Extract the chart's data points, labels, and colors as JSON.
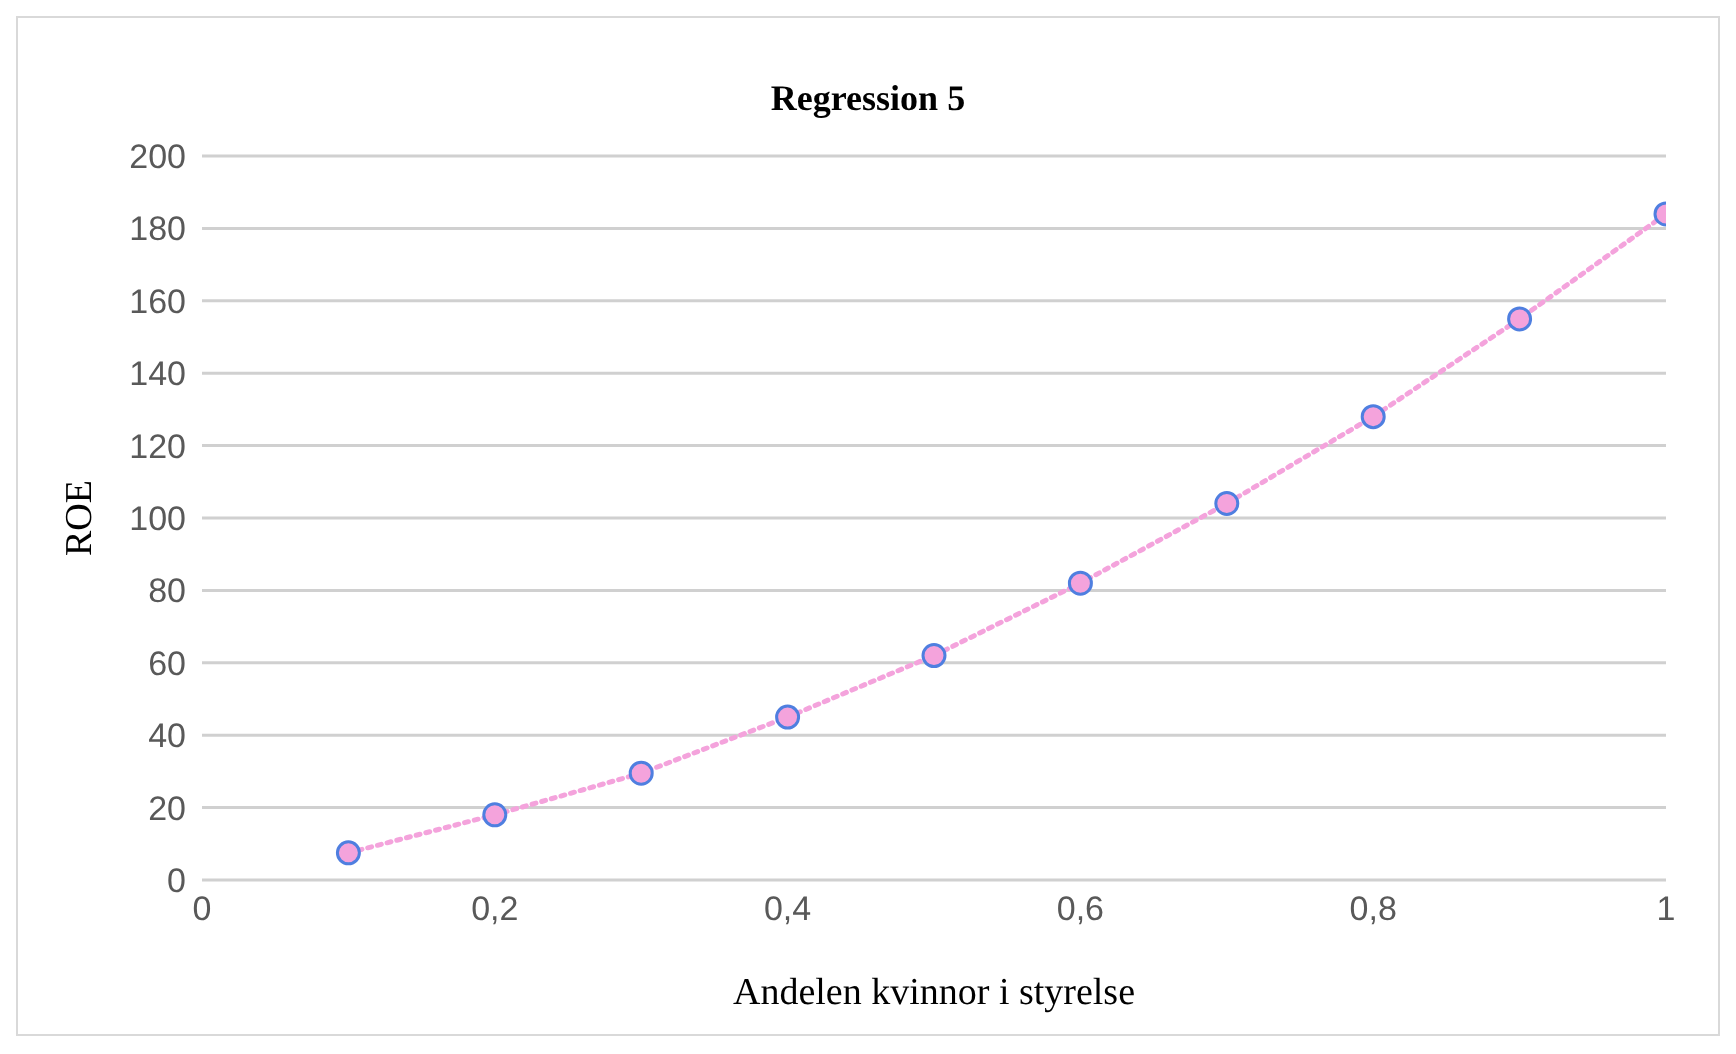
{
  "chart_data": {
    "type": "line",
    "title": "Regression 5",
    "xlabel": "Andelen kvinnor i styrelse",
    "ylabel": "ROE",
    "x": [
      0.1,
      0.2,
      0.3,
      0.4,
      0.5,
      0.6,
      0.7,
      0.8,
      0.9,
      1.0
    ],
    "series": [
      {
        "color": "#f4a3dc",
        "values": [
          7.5,
          18,
          29.5,
          45,
          62,
          82,
          104,
          128,
          155,
          184
        ]
      }
    ],
    "xlim": [
      0,
      1
    ],
    "xticks": [
      0,
      {
        "value": 0.2,
        "label": "0,2"
      },
      {
        "value": 0.4,
        "label": "0,4"
      },
      {
        "value": 0.6,
        "label": "0,6"
      },
      {
        "value": 0.8,
        "label": "0,8"
      },
      1
    ],
    "ylim": [
      0,
      200
    ],
    "yticks": [
      0,
      20,
      40,
      60,
      80,
      100,
      120,
      140,
      160,
      180,
      200
    ],
    "grid": "y",
    "marker": "circle",
    "line_style": "dotted"
  }
}
